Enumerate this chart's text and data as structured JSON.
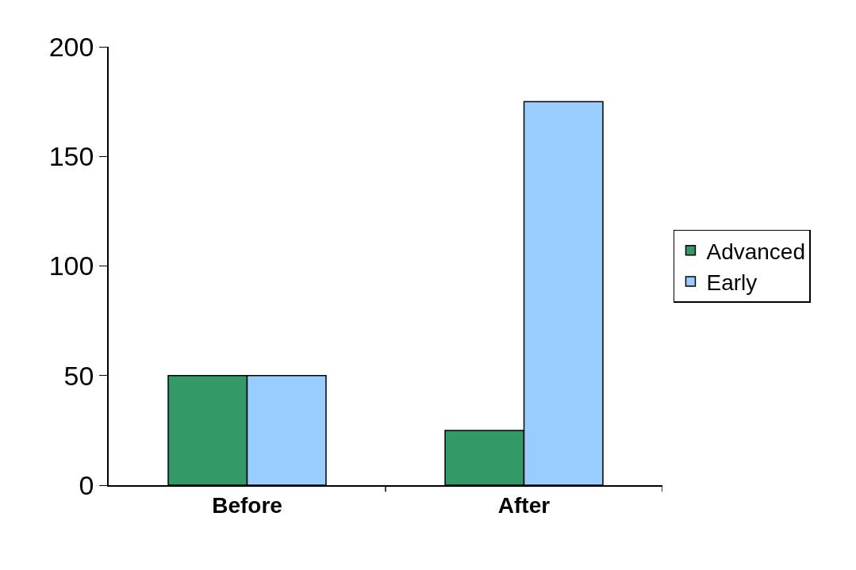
{
  "chart_data": {
    "type": "bar",
    "categories": [
      "Before",
      "After"
    ],
    "series": [
      {
        "name": "Advanced",
        "color": "#339966",
        "values": [
          50,
          25
        ]
      },
      {
        "name": "Early",
        "color": "#99ccff",
        "values": [
          50,
          175
        ]
      }
    ],
    "ylim": [
      0,
      200
    ],
    "yticks": [
      0,
      50,
      100,
      150,
      200
    ],
    "grid": false,
    "legend": "right"
  }
}
